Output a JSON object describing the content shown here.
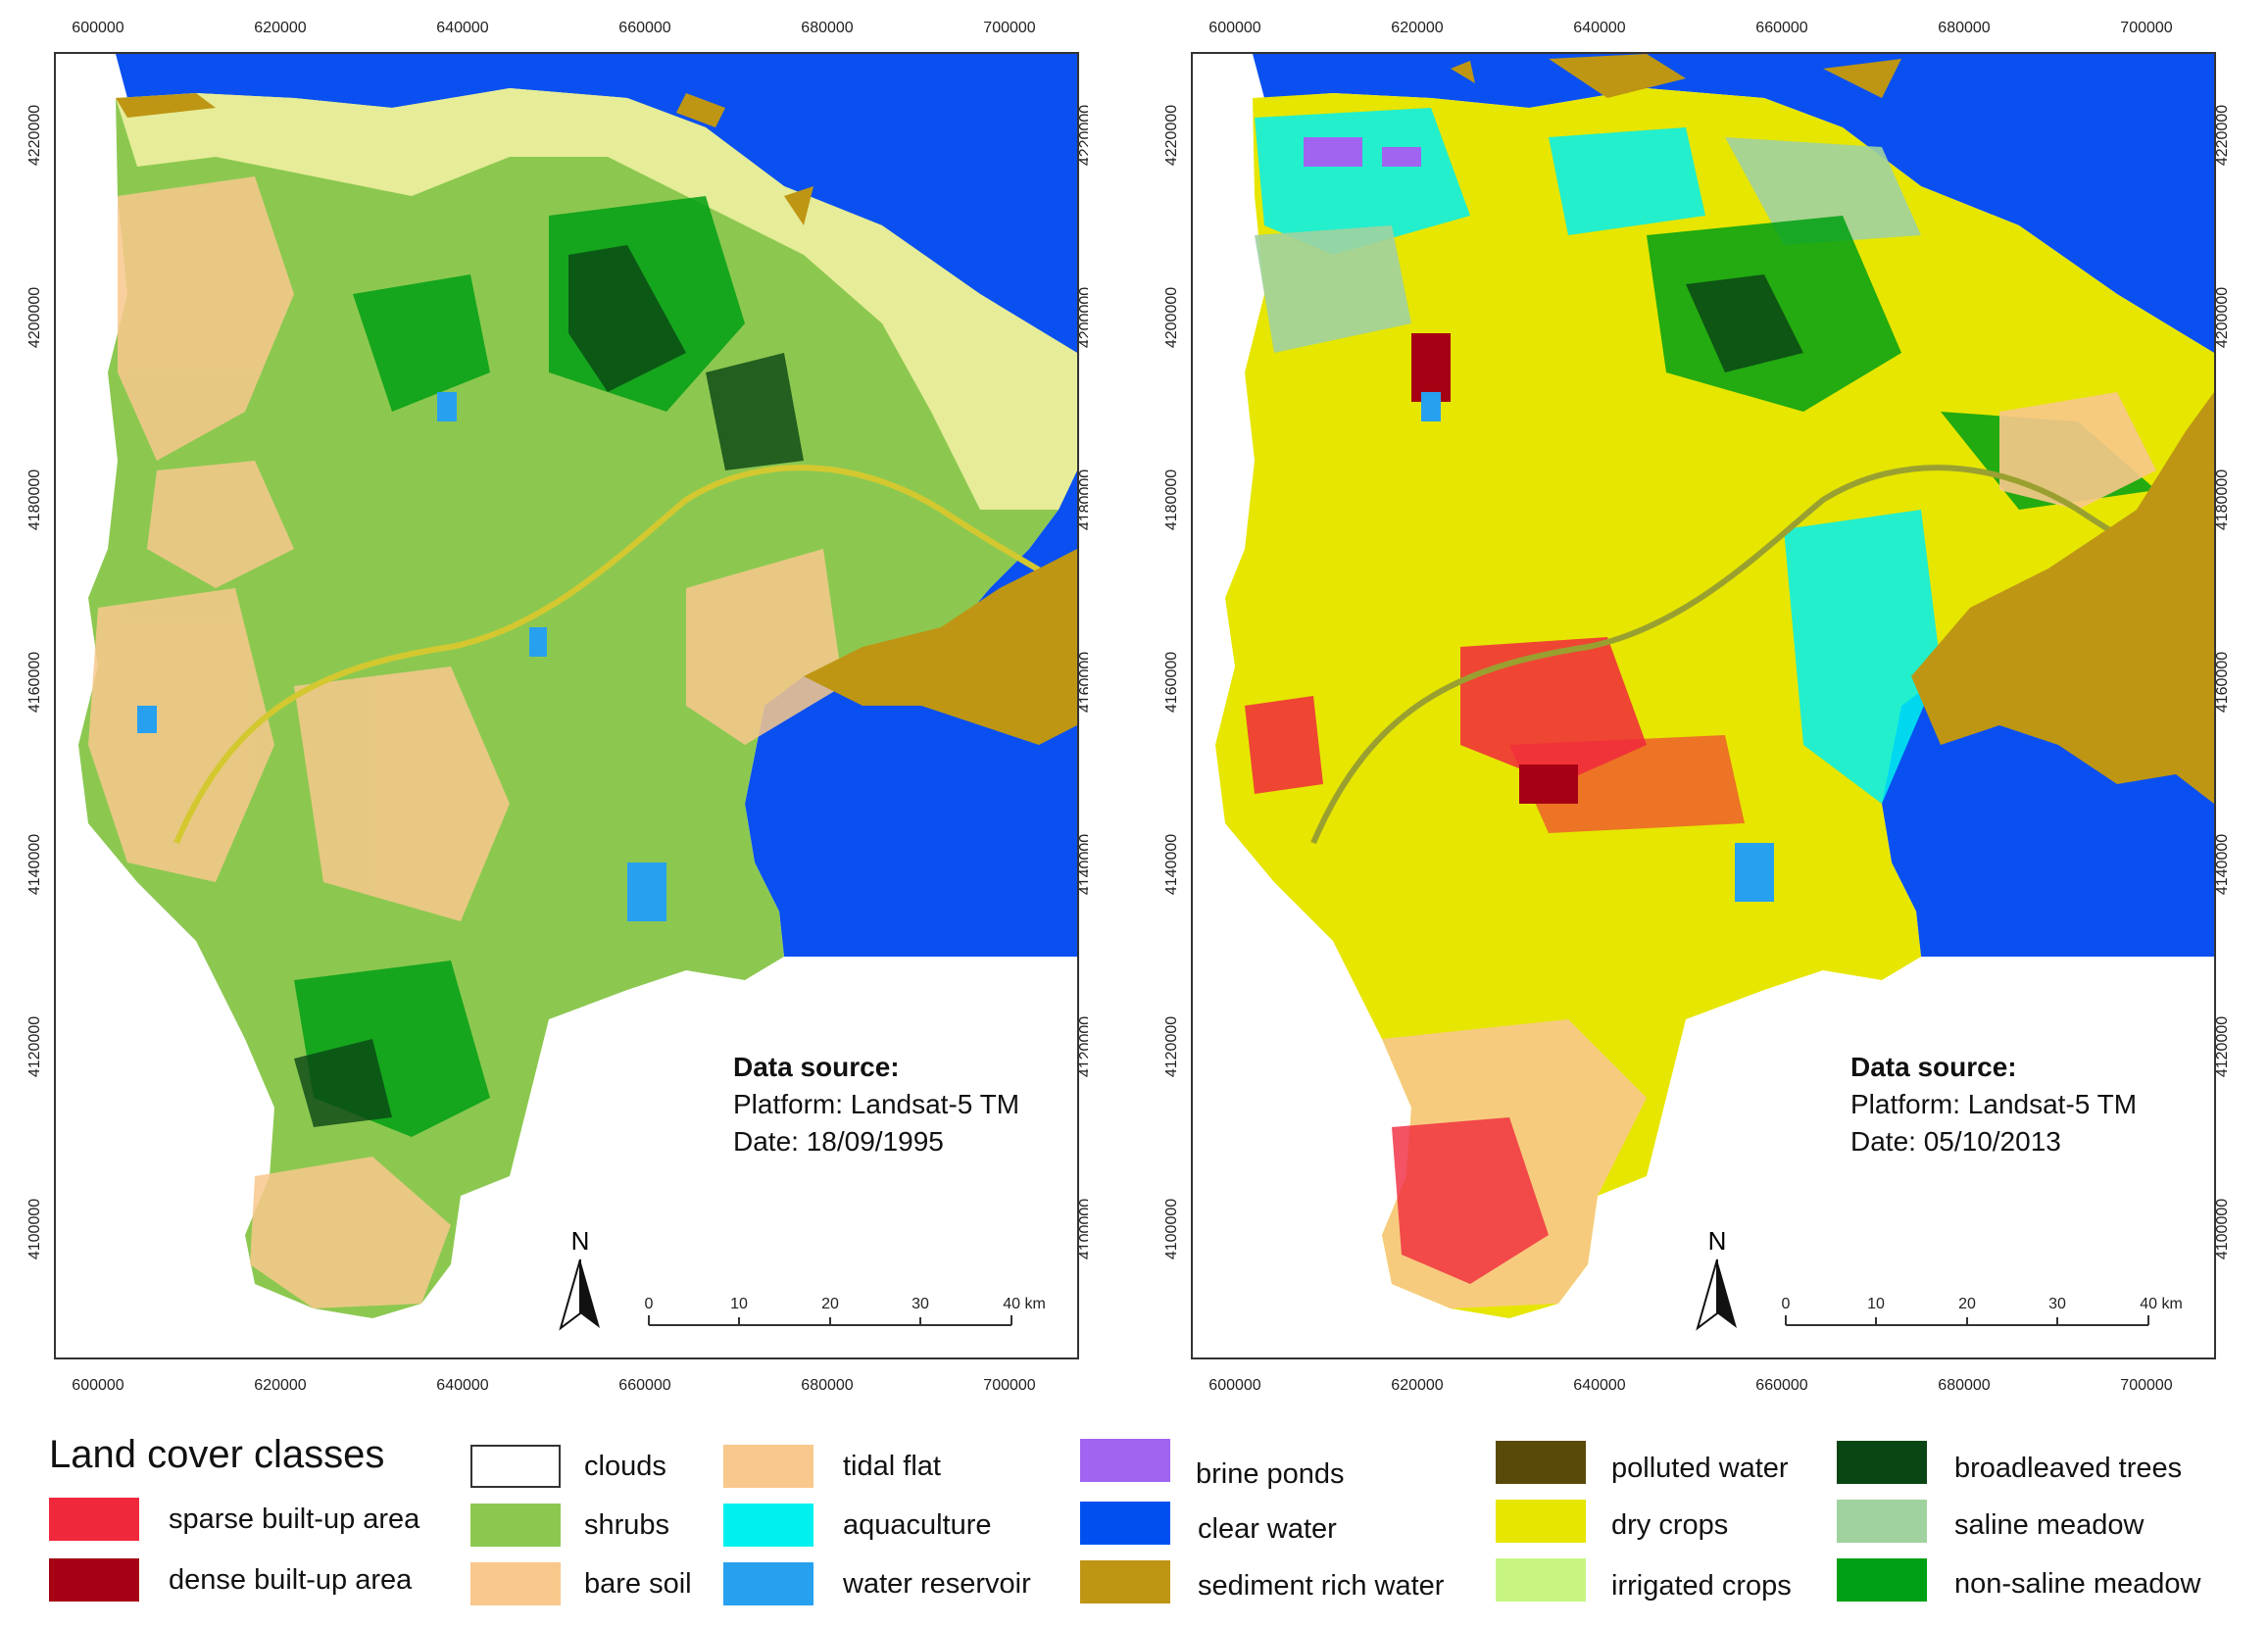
{
  "left_map": {
    "x_ticks": [
      "600000",
      "620000",
      "640000",
      "660000",
      "680000",
      "700000"
    ],
    "y_ticks": [
      "4220000",
      "4200000",
      "4180000",
      "4160000",
      "4140000",
      "4120000",
      "4100000"
    ],
    "data_source_title": "Data source:",
    "platform": "Platform: Landsat-5 TM",
    "date": "Date: 18/09/1995",
    "north_label": "N",
    "scale_ticks": [
      "0",
      "10",
      "20",
      "30",
      "40 km"
    ]
  },
  "right_map": {
    "x_ticks": [
      "600000",
      "620000",
      "640000",
      "660000",
      "680000",
      "700000"
    ],
    "y_ticks": [
      "4220000",
      "4200000",
      "4180000",
      "4160000",
      "4140000",
      "4120000",
      "4100000"
    ],
    "data_source_title": "Data source:",
    "platform": "Platform: Landsat-5 TM",
    "date": "Date: 05/10/2013",
    "north_label": "N",
    "scale_ticks": [
      "0",
      "10",
      "20",
      "30",
      "40 km"
    ]
  },
  "legend": {
    "title": "Land cover classes",
    "items": [
      {
        "label": "sparse built-up area",
        "color": "#f0283c"
      },
      {
        "label": "dense built-up area",
        "color": "#a50014"
      },
      {
        "label": "clouds",
        "color": "#ffffff"
      },
      {
        "label": "shrubs",
        "color": "#8cc850"
      },
      {
        "label": "bare soil",
        "color": "#f8c88c"
      },
      {
        "label": "tidal flat",
        "color": "#f8c88c"
      },
      {
        "label": "aquaculture",
        "color": "#00f0f0"
      },
      {
        "label": "water reservoir",
        "color": "#28a0f0"
      },
      {
        "label": "brine ponds",
        "color": "#a064f0"
      },
      {
        "label": "clear water",
        "color": "#0050f0"
      },
      {
        "label": "sediment rich water",
        "color": "#be9614"
      },
      {
        "label": "polluted water",
        "color": "#5a4a0a"
      },
      {
        "label": "dry crops",
        "color": "#e6e600"
      },
      {
        "label": "irrigated crops",
        "color": "#c8f582"
      },
      {
        "label": "broadleaved trees",
        "color": "#0a4614"
      },
      {
        "label": "saline meadow",
        "color": "#a0d2a0"
      },
      {
        "label": "non-saline meadow",
        "color": "#00a014"
      }
    ]
  }
}
